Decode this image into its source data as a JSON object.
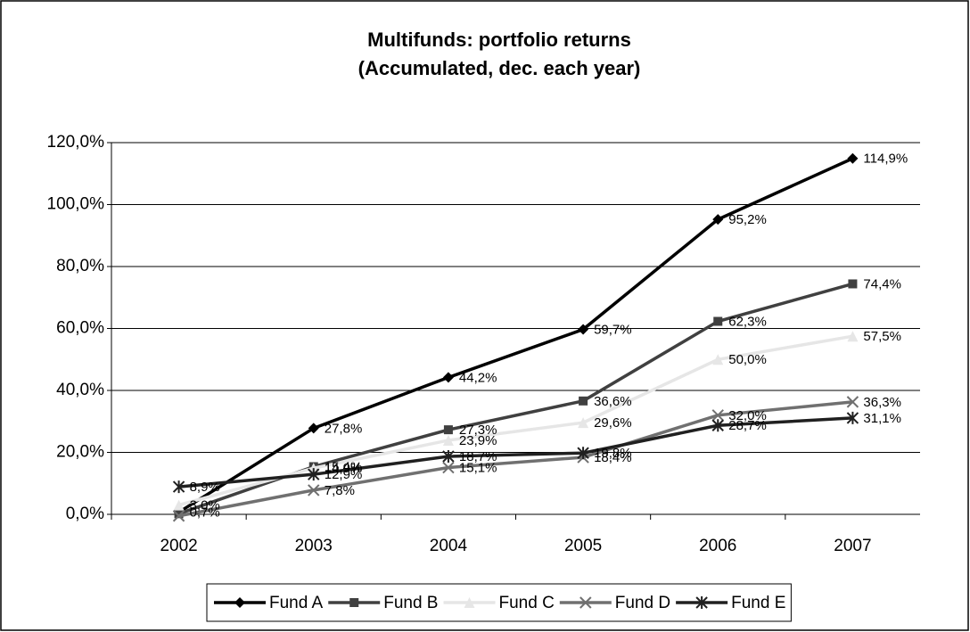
{
  "chart_data": {
    "type": "line",
    "title": "Multifunds: portfolio returns",
    "subtitle": "(Accumulated, dec. each year)",
    "categories": [
      "2002",
      "2003",
      "2004",
      "2005",
      "2006",
      "2007"
    ],
    "series": [
      {
        "name": "Fund A",
        "color": "#000000",
        "marker": "diamond",
        "values": [
          0.7,
          27.8,
          44.2,
          59.7,
          95.2,
          114.9
        ],
        "value_labels": [
          "0,7%",
          "27,8%",
          "44,2%",
          "59,7%",
          "95,2%",
          "114,9%"
        ]
      },
      {
        "name": "Fund B",
        "color": "#404040",
        "marker": "square",
        "values": [
          0.2,
          15.4,
          27.3,
          36.6,
          62.3,
          74.4
        ],
        "value_labels": [
          null,
          "15,4%",
          "27,3%",
          "36,6%",
          "62,3%",
          "74,4%"
        ]
      },
      {
        "name": "Fund C",
        "color": "#e6e6e6",
        "marker": "triangle",
        "values": [
          3.0,
          14.9,
          23.9,
          29.6,
          50.0,
          57.5
        ],
        "value_labels": [
          "3,0%",
          "14,9%",
          "23,9%",
          "29,6%",
          "50,0%",
          "57,5%"
        ]
      },
      {
        "name": "Fund D",
        "color": "#707070",
        "marker": "x",
        "values": [
          -0.5,
          7.8,
          15.1,
          18.4,
          32.0,
          36.3
        ],
        "value_labels": [
          null,
          "7,8%",
          "15,1%",
          "18,4%",
          "32,0%",
          "36,3%"
        ]
      },
      {
        "name": "Fund E",
        "color": "#202020",
        "marker": "star",
        "values": [
          8.9,
          12.9,
          18.7,
          19.8,
          28.7,
          31.1
        ],
        "value_labels": [
          "8,9%",
          "12,9%",
          "18,7%",
          "19,8%",
          "28,7%",
          "31,1%"
        ]
      }
    ],
    "ylim": [
      0,
      120
    ],
    "yticks": [
      {
        "value": 0,
        "label": "0,0%"
      },
      {
        "value": 20,
        "label": "20,0%"
      },
      {
        "value": 40,
        "label": "40,0%"
      },
      {
        "value": 60,
        "label": "60,0%"
      },
      {
        "value": 80,
        "label": "80,0%"
      },
      {
        "value": 100,
        "label": "100,0%"
      },
      {
        "value": 120,
        "label": "120,0%"
      }
    ],
    "grid": true,
    "legend": "bottom"
  }
}
